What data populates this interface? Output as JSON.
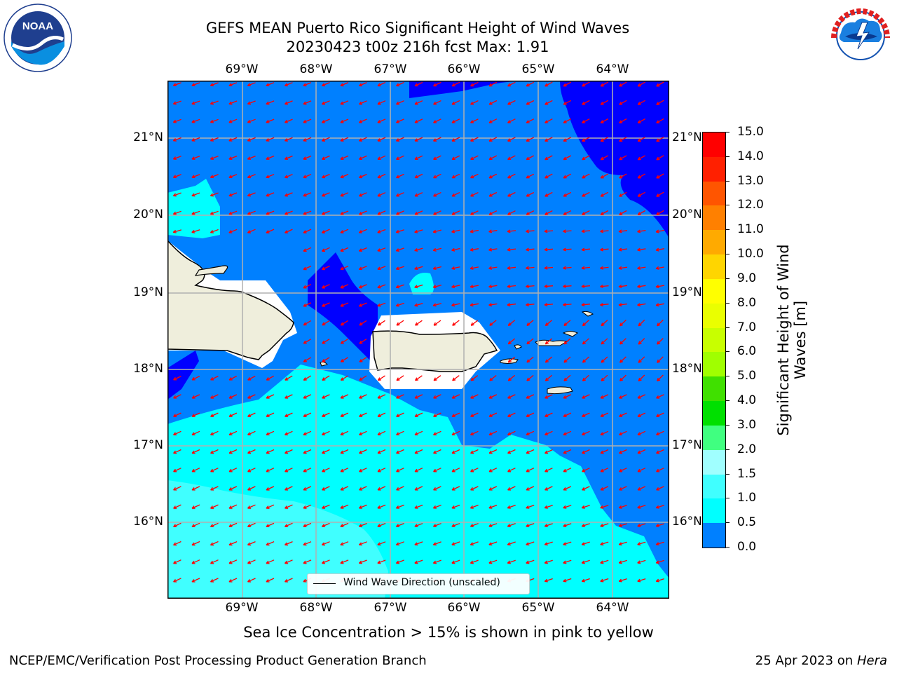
{
  "header": {
    "title_line1": "GEFS MEAN Puerto Rico Significant Height of Wind Waves",
    "title_line2": "20230423 t00z 216h fcst   Max: 1.91"
  },
  "logos": {
    "left": {
      "text": "NOAA",
      "ring_text": "NATIONAL OCEANIC AND ATMOSPHERIC ADMINISTRATION · U.S. DEPARTMENT OF COMMERCE"
    },
    "right": {
      "ring_text": "NATIONAL WEATHER SERVICE"
    }
  },
  "map": {
    "lon_labels": [
      "69°W",
      "68°W",
      "67°W",
      "66°W",
      "65°W",
      "64°W"
    ],
    "lat_labels": [
      "21°N",
      "20°N",
      "19°N",
      "18°N",
      "17°N",
      "16°N"
    ],
    "legend_label": "Wind Wave Direction (unscaled)",
    "colors": {
      "band_0_0.5": "#0000ff",
      "band_0.5_1": "#0080ff",
      "band_1_1.5": "#00ffff",
      "band_1.5_2": "#40ffff",
      "land": "#efeedc",
      "arrow": "#ff0000"
    }
  },
  "colorbar": {
    "label": "Significant Height of Wind Waves [m]",
    "label_line1": "Significant Height of Wind",
    "label_line2": "Waves [m]",
    "ticks": [
      "15.0",
      "14.0",
      "13.0",
      "12.0",
      "11.0",
      "10.0",
      "9.0",
      "8.0",
      "7.0",
      "6.0",
      "5.0",
      "4.0",
      "3.0",
      "2.0",
      "1.5",
      "1.0",
      "0.5",
      "0.0"
    ],
    "colors": [
      "#ff0000",
      "#ff2000",
      "#ff5500",
      "#ff8000",
      "#ffaa00",
      "#ffd500",
      "#ffff00",
      "#eaff00",
      "#c8ff00",
      "#a0ff00",
      "#40e000",
      "#00e000",
      "#40ff80",
      "#a0ffff",
      "#40ffff",
      "#00ffff",
      "#0080ff",
      "#0000ff"
    ]
  },
  "notes": {
    "sea_ice": "Sea Ice Concentration > 15% is shown in pink to yellow"
  },
  "footer": {
    "left": "NCEP/EMC/Verification Post Processing Product Generation Branch",
    "right_date": "25 Apr 2023 on",
    "right_machine": "Hera"
  }
}
